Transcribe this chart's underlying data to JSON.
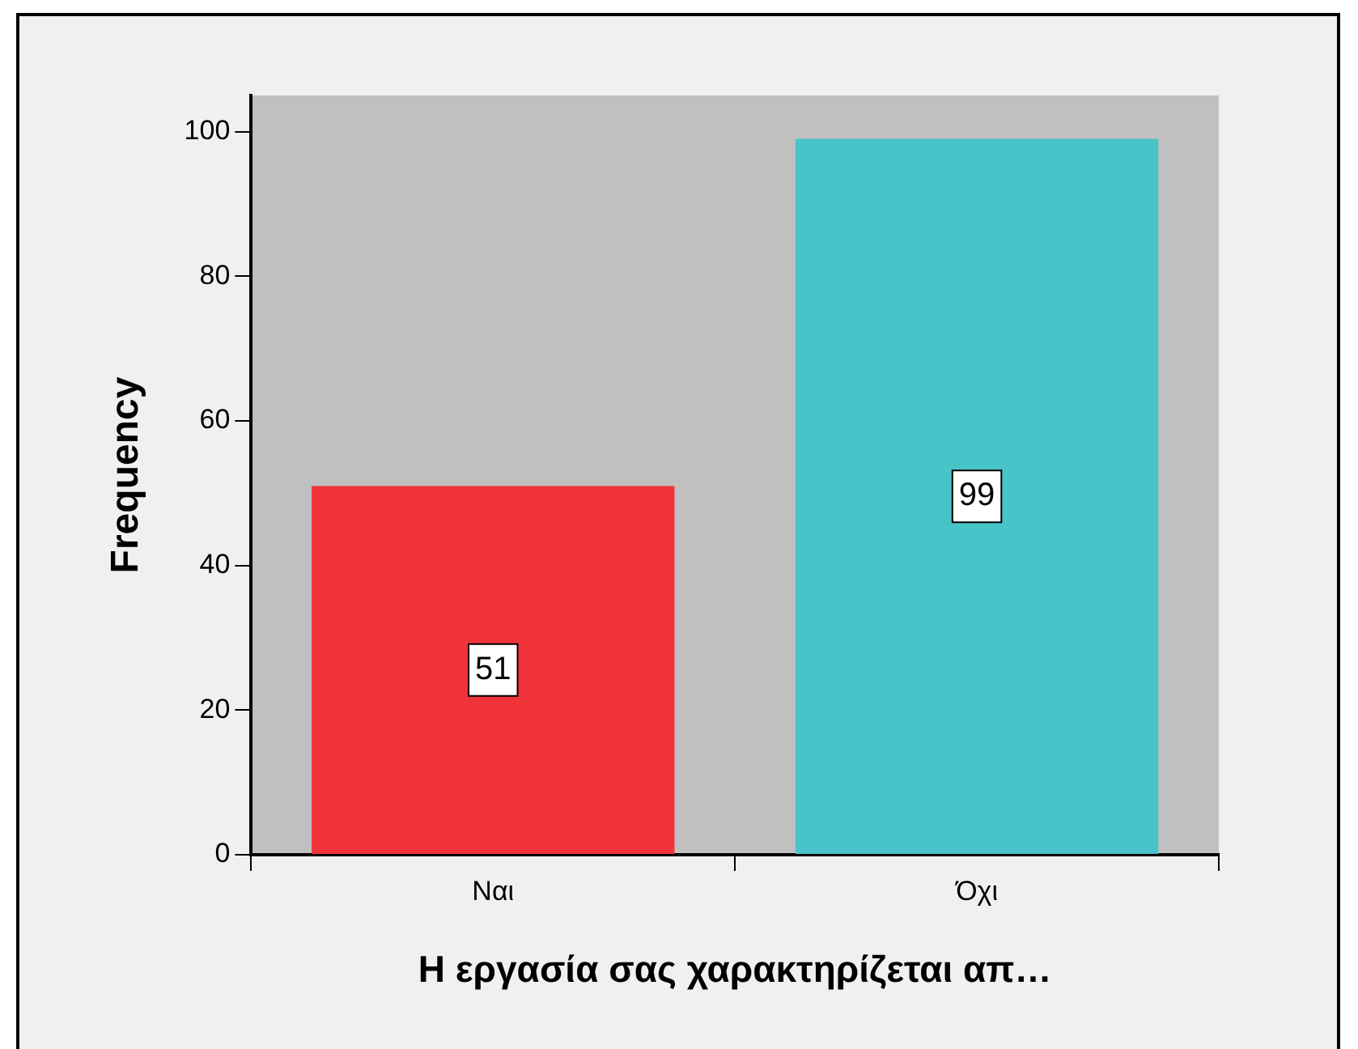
{
  "chart_data": {
    "type": "bar",
    "xlabel": "Η εργασία σας χαρακτηρίζεται απ…",
    "ylabel": "Frequency",
    "categories": [
      "Ναι",
      "Όχι"
    ],
    "values": [
      51,
      99
    ],
    "colors": [
      "#ef3338",
      "#48c3c8"
    ],
    "ylim": [
      0,
      105
    ],
    "yticks": [
      0,
      20,
      40,
      60,
      80,
      100
    ],
    "grid": false,
    "legend": false,
    "data_labels": true
  }
}
